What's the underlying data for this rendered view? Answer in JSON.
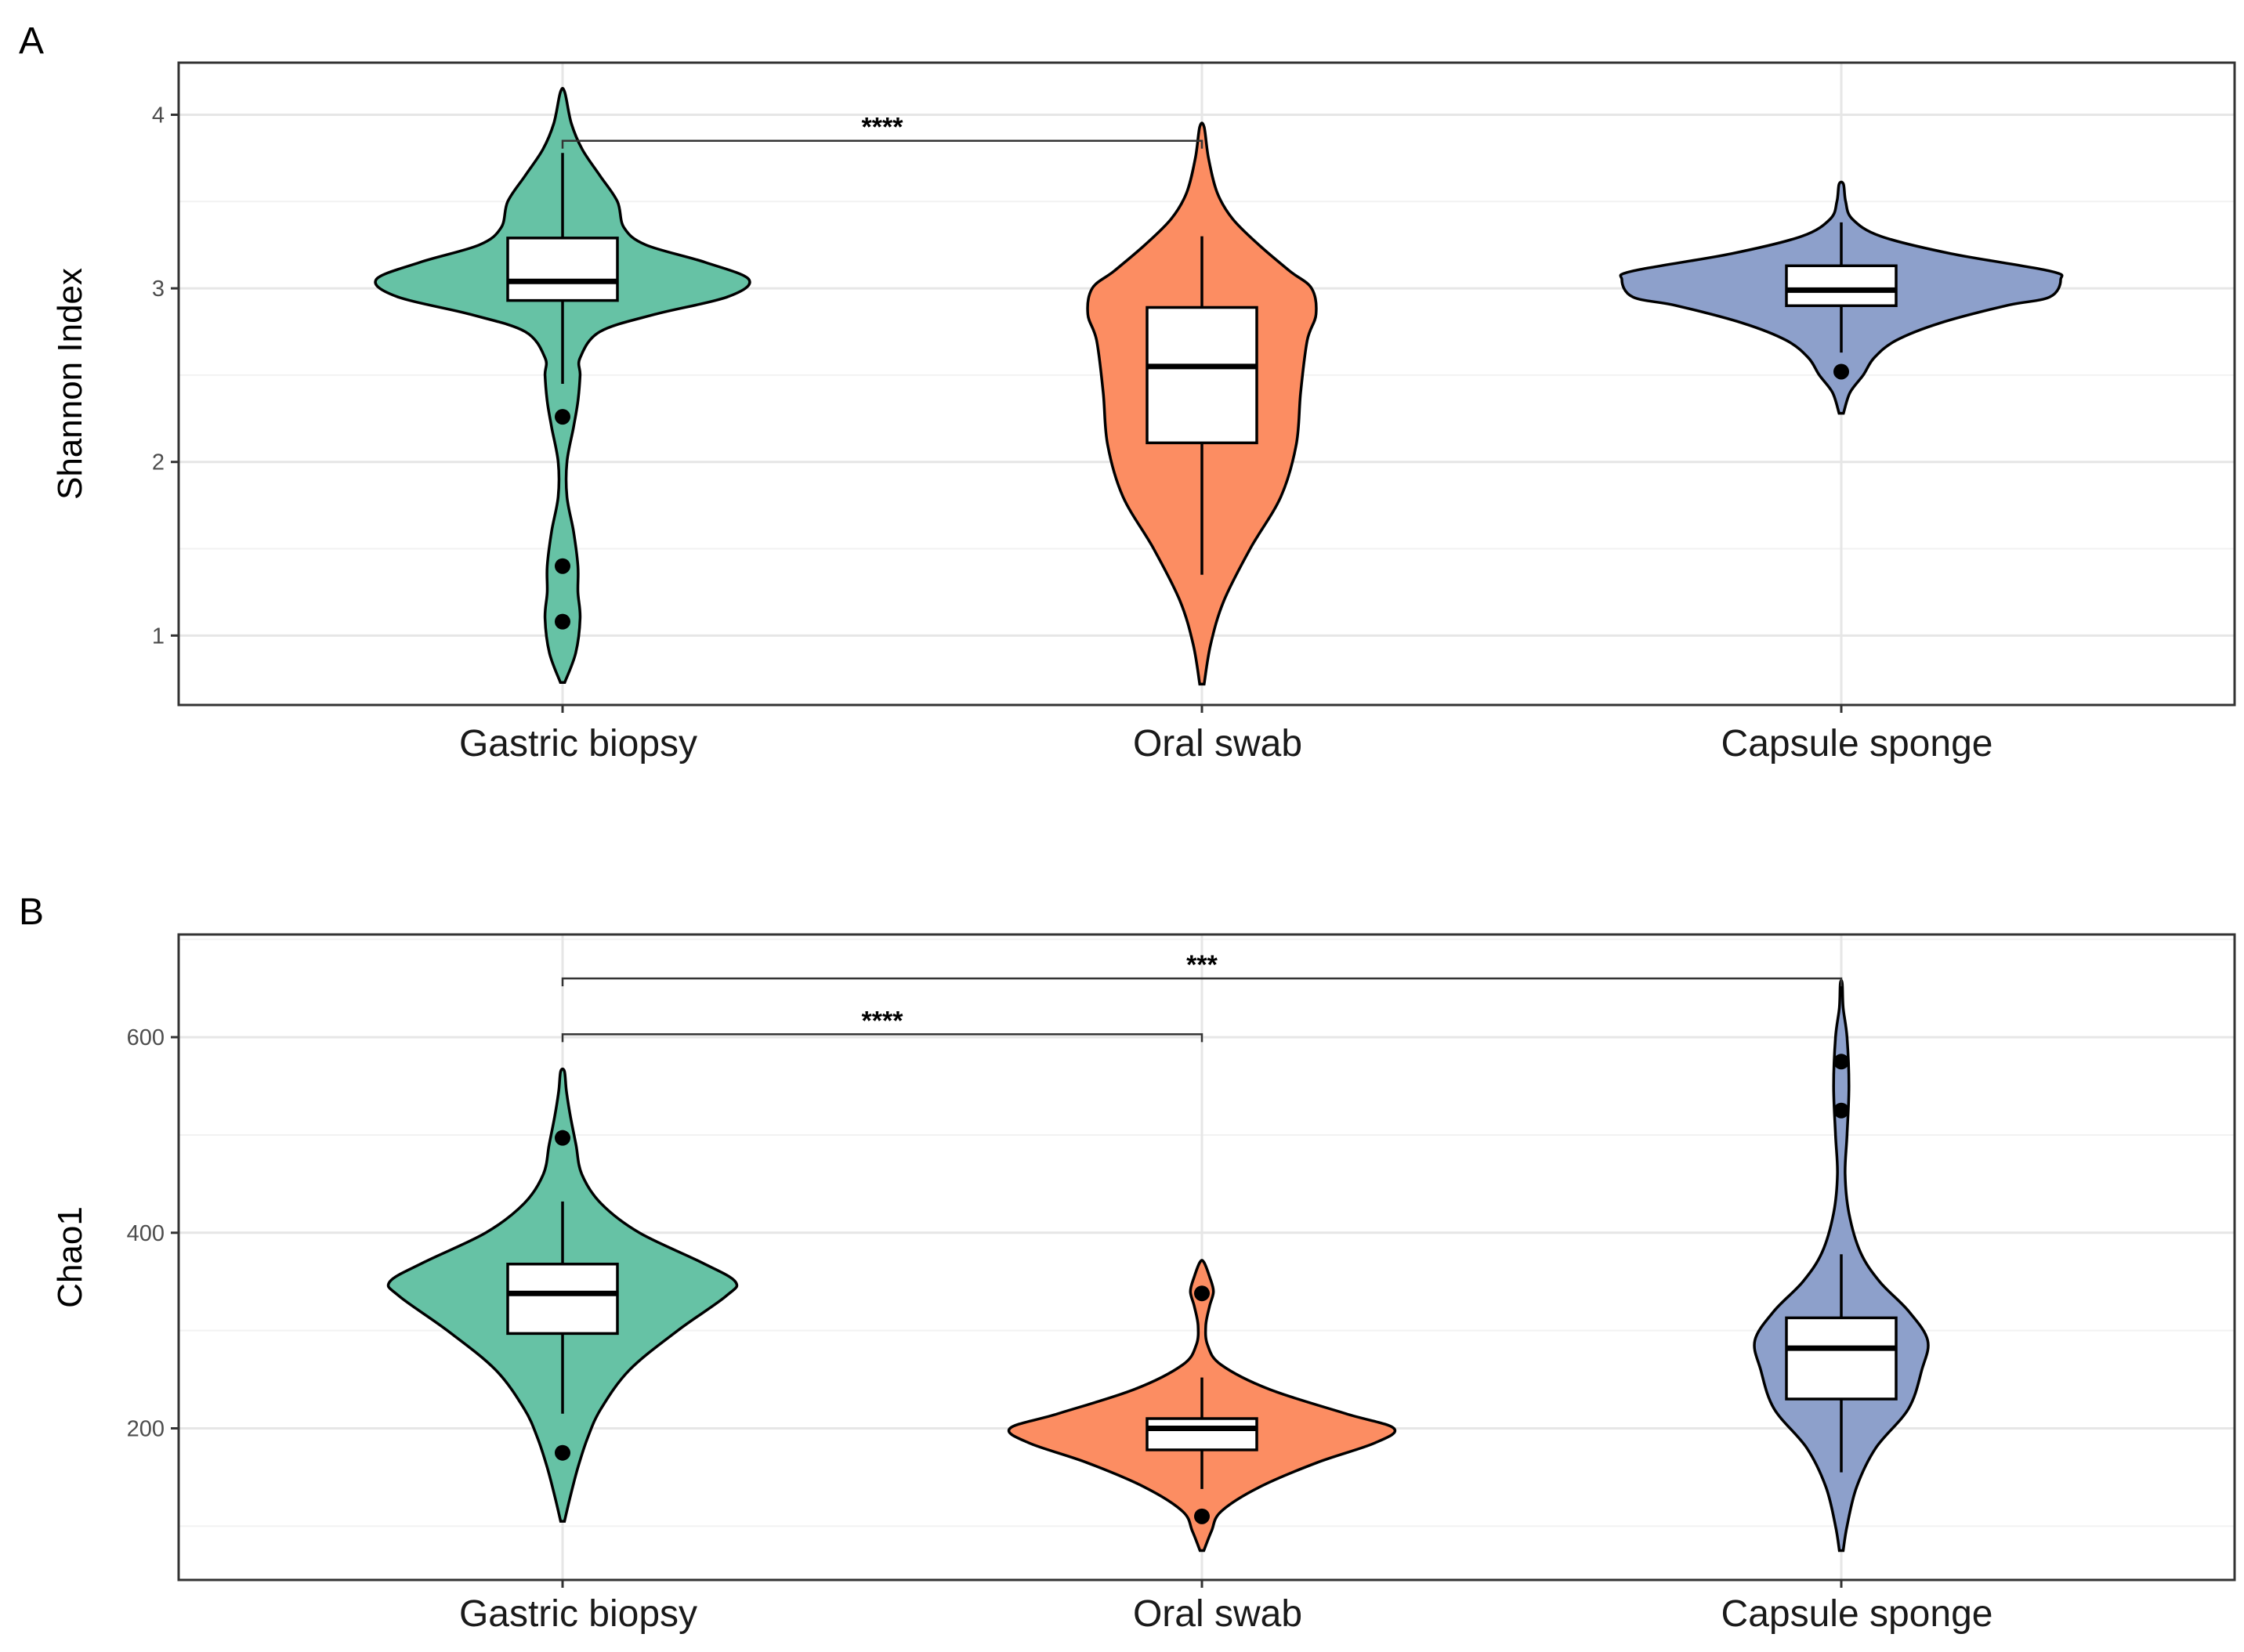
{
  "chart_data": [
    {
      "panel": "A",
      "type": "violin",
      "ylabel": "Shannon Index",
      "xlabel": "",
      "ylim": [
        0.6,
        4.3
      ],
      "yticks": [
        1,
        2,
        3,
        4
      ],
      "grid": true,
      "categories": [
        "Gastric biopsy",
        "Oral swab",
        "Capsule sponge"
      ],
      "colors": [
        "#66c2a5",
        "#fc8d62",
        "#8da0cb"
      ],
      "series": [
        {
          "boxplot": {
            "lower_whisker": 2.45,
            "q1": 2.93,
            "median": 3.04,
            "q3": 3.29,
            "upper_whisker": 3.78
          },
          "outliers": [
            2.26,
            1.4,
            1.08
          ],
          "density": [
            [
              0.73,
              0.01
            ],
            [
              0.9,
              0.06
            ],
            [
              1.1,
              0.08
            ],
            [
              1.25,
              0.07
            ],
            [
              1.4,
              0.07
            ],
            [
              1.6,
              0.05
            ],
            [
              1.8,
              0.02
            ],
            [
              2.0,
              0.02
            ],
            [
              2.2,
              0.05
            ],
            [
              2.35,
              0.07
            ],
            [
              2.5,
              0.08
            ],
            [
              2.6,
              0.08
            ],
            [
              2.75,
              0.17
            ],
            [
              2.85,
              0.42
            ],
            [
              2.95,
              0.75
            ],
            [
              3.05,
              0.85
            ],
            [
              3.15,
              0.65
            ],
            [
              3.25,
              0.38
            ],
            [
              3.35,
              0.28
            ],
            [
              3.5,
              0.25
            ],
            [
              3.65,
              0.17
            ],
            [
              3.8,
              0.09
            ],
            [
              3.95,
              0.04
            ],
            [
              4.13,
              0.01
            ]
          ]
        },
        {
          "boxplot": {
            "lower_whisker": 1.35,
            "q1": 2.11,
            "median": 2.55,
            "q3": 2.89,
            "upper_whisker": 3.3
          },
          "outliers": [],
          "density": [
            [
              0.72,
              0.01
            ],
            [
              0.95,
              0.04
            ],
            [
              1.2,
              0.1
            ],
            [
              1.5,
              0.22
            ],
            [
              1.8,
              0.36
            ],
            [
              2.1,
              0.43
            ],
            [
              2.4,
              0.45
            ],
            [
              2.7,
              0.48
            ],
            [
              2.85,
              0.52
            ],
            [
              3.0,
              0.5
            ],
            [
              3.1,
              0.4
            ],
            [
              3.25,
              0.26
            ],
            [
              3.4,
              0.14
            ],
            [
              3.55,
              0.07
            ],
            [
              3.75,
              0.03
            ],
            [
              3.93,
              0.01
            ]
          ]
        },
        {
          "boxplot": {
            "lower_whisker": 2.63,
            "q1": 2.9,
            "median": 2.99,
            "q3": 3.13,
            "upper_whisker": 3.38
          },
          "outliers": [
            2.52
          ],
          "density": [
            [
              2.28,
              0.01
            ],
            [
              2.4,
              0.04
            ],
            [
              2.5,
              0.1
            ],
            [
              2.6,
              0.15
            ],
            [
              2.7,
              0.25
            ],
            [
              2.8,
              0.45
            ],
            [
              2.9,
              0.75
            ],
            [
              2.95,
              0.95
            ],
            [
              3.05,
              1.0
            ],
            [
              3.1,
              0.95
            ],
            [
              3.2,
              0.5
            ],
            [
              3.3,
              0.18
            ],
            [
              3.4,
              0.05
            ],
            [
              3.5,
              0.02
            ],
            [
              3.6,
              0.01
            ]
          ]
        }
      ],
      "comparisons": [
        {
          "from": 0,
          "to": 1,
          "label": "****",
          "y": 3.85
        }
      ]
    },
    {
      "panel": "B",
      "type": "violin",
      "ylabel": "Chao1",
      "xlabel": "",
      "ylim": [
        45,
        705
      ],
      "yticks": [
        200,
        400,
        600
      ],
      "grid": true,
      "categories": [
        "Gastric biopsy",
        "Oral swab",
        "Capsule sponge"
      ],
      "colors": [
        "#66c2a5",
        "#fc8d62",
        "#8da0cb"
      ],
      "series": [
        {
          "boxplot": {
            "lower_whisker": 215,
            "q1": 297,
            "median": 338,
            "q3": 368,
            "upper_whisker": 432
          },
          "outliers": [
            497,
            175
          ],
          "density": [
            [
              105,
              0.01
            ],
            [
              130,
              0.04
            ],
            [
              160,
              0.08
            ],
            [
              190,
              0.13
            ],
            [
              220,
              0.2
            ],
            [
              260,
              0.35
            ],
            [
              300,
              0.6
            ],
            [
              335,
              0.85
            ],
            [
              350,
              0.9
            ],
            [
              370,
              0.72
            ],
            [
              400,
              0.4
            ],
            [
              430,
              0.2
            ],
            [
              460,
              0.1
            ],
            [
              490,
              0.07
            ],
            [
              520,
              0.04
            ],
            [
              545,
              0.02
            ],
            [
              565,
              0.01
            ]
          ]
        },
        {
          "boxplot": {
            "lower_whisker": 138,
            "q1": 178,
            "median": 200,
            "q3": 210,
            "upper_whisker": 252
          },
          "outliers": [
            338,
            110
          ],
          "density": [
            [
              75,
              0.01
            ],
            [
              95,
              0.05
            ],
            [
              115,
              0.1
            ],
            [
              140,
              0.3
            ],
            [
              165,
              0.6
            ],
            [
              185,
              0.9
            ],
            [
              200,
              1.0
            ],
            [
              215,
              0.75
            ],
            [
              240,
              0.35
            ],
            [
              265,
              0.1
            ],
            [
              285,
              0.03
            ],
            [
              305,
              0.02
            ],
            [
              325,
              0.04
            ],
            [
              340,
              0.06
            ],
            [
              355,
              0.04
            ],
            [
              370,
              0.01
            ]
          ]
        },
        {
          "boxplot": {
            "lower_whisker": 155,
            "q1": 230,
            "median": 282,
            "q3": 313,
            "upper_whisker": 378
          },
          "outliers": [
            575,
            525
          ],
          "density": [
            [
              75,
              0.01
            ],
            [
              100,
              0.03
            ],
            [
              140,
              0.08
            ],
            [
              180,
              0.18
            ],
            [
              220,
              0.35
            ],
            [
              260,
              0.42
            ],
            [
              290,
              0.45
            ],
            [
              320,
              0.35
            ],
            [
              350,
              0.2
            ],
            [
              380,
              0.1
            ],
            [
              420,
              0.04
            ],
            [
              460,
              0.02
            ],
            [
              500,
              0.03
            ],
            [
              550,
              0.04
            ],
            [
              600,
              0.03
            ],
            [
              630,
              0.01
            ],
            [
              655,
              0.005
            ]
          ]
        }
      ],
      "comparisons": [
        {
          "from": 0,
          "to": 2,
          "label": "***",
          "y": 660
        },
        {
          "from": 0,
          "to": 1,
          "label": "****",
          "y": 603
        }
      ]
    }
  ]
}
